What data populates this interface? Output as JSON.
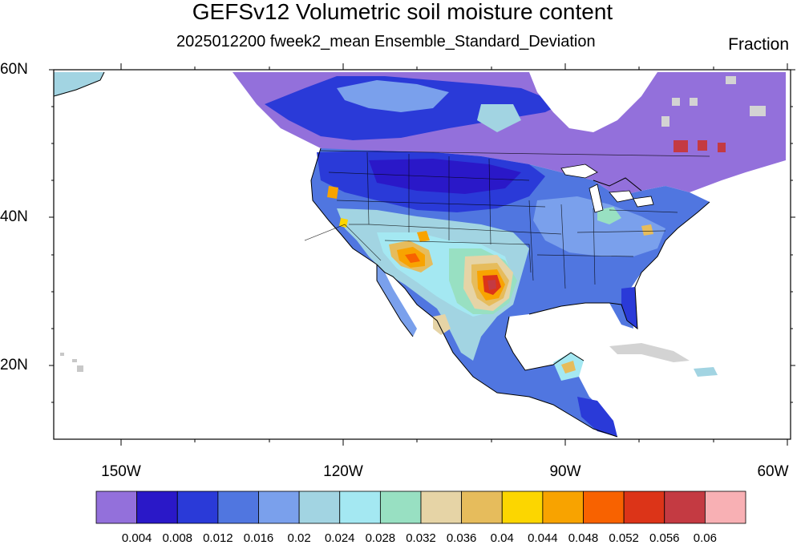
{
  "title": "GEFSv12 Volumetric soil moisture content",
  "subtitle": "2025012200 fweek2_mean Ensemble_Standard_Deviation",
  "units": "Fraction",
  "lat_labels": [
    "60N",
    "40N",
    "20N"
  ],
  "lon_labels": [
    "150W",
    "120W",
    "90W",
    "60W"
  ],
  "colorbar": {
    "colors": [
      "#9370db",
      "#2a18c8",
      "#2a3ad8",
      "#5076e0",
      "#7aa0ec",
      "#a2d4e2",
      "#a4e8f2",
      "#98e0c2",
      "#e6d4a6",
      "#e6bc5c",
      "#fcd600",
      "#f8a300",
      "#f86200",
      "#dc3418",
      "#c43a42",
      "#f8b0b4"
    ],
    "labels": [
      "0.004",
      "0.008",
      "0.012",
      "0.016",
      "0.02",
      "0.024",
      "0.028",
      "0.032",
      "0.036",
      "0.04",
      "0.044",
      "0.048",
      "0.052",
      "0.056",
      "0.06"
    ]
  }
}
